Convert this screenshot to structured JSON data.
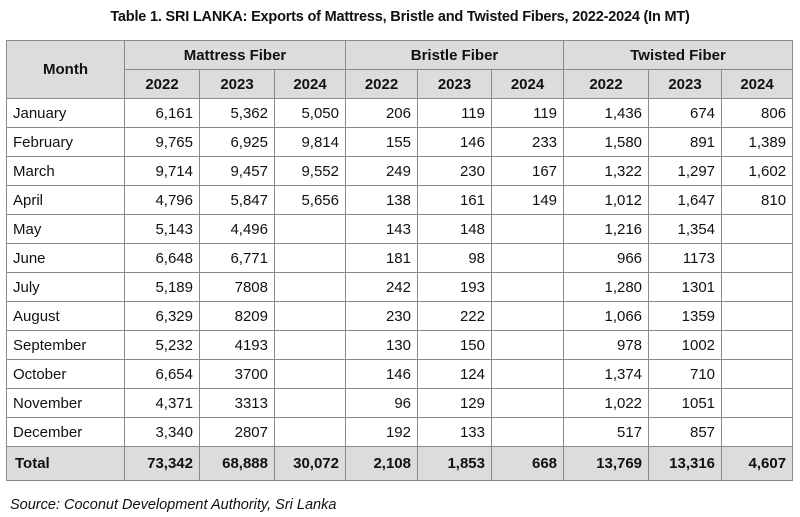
{
  "title": "Table 1. SRI LANKA: Exports of Mattress, Bristle and Twisted Fibers, 2022-2024 (In MT)",
  "month_header": "Month",
  "groups": [
    "Mattress Fiber",
    "Bristle Fiber",
    "Twisted Fiber"
  ],
  "years": [
    "2022",
    "2023",
    "2024"
  ],
  "rows": [
    {
      "month": "January",
      "values": [
        "6,161",
        "5,362",
        "5,050",
        "206",
        "119",
        "119",
        "1,436",
        "674",
        "806"
      ]
    },
    {
      "month": "February",
      "values": [
        "9,765",
        "6,925",
        "9,814",
        "155",
        "146",
        "233",
        "1,580",
        "891",
        "1,389"
      ]
    },
    {
      "month": "March",
      "values": [
        "9,714",
        "9,457",
        "9,552",
        "249",
        "230",
        "167",
        "1,322",
        "1,297",
        "1,602"
      ]
    },
    {
      "month": "April",
      "values": [
        "4,796",
        "5,847",
        "5,656",
        "138",
        "161",
        "149",
        "1,012",
        "1,647",
        "810"
      ]
    },
    {
      "month": "May",
      "values": [
        "5,143",
        "4,496",
        "",
        "143",
        "148",
        "",
        "1,216",
        "1,354",
        ""
      ]
    },
    {
      "month": "June",
      "values": [
        "6,648",
        "6,771",
        "",
        "181",
        "98",
        "",
        "966",
        "1173",
        ""
      ]
    },
    {
      "month": "July",
      "values": [
        "5,189",
        "7808",
        "",
        "242",
        "193",
        "",
        "1,280",
        "1301",
        ""
      ]
    },
    {
      "month": "August",
      "values": [
        "6,329",
        "8209",
        "",
        "230",
        "222",
        "",
        "1,066",
        "1359",
        ""
      ]
    },
    {
      "month": "September",
      "values": [
        "5,232",
        "4193",
        "",
        "130",
        "150",
        "",
        "978",
        "1002",
        ""
      ]
    },
    {
      "month": "October",
      "values": [
        "6,654",
        "3700",
        "",
        "146",
        "124",
        "",
        "1,374",
        "710",
        ""
      ]
    },
    {
      "month": "November",
      "values": [
        "4,371",
        "3313",
        "",
        "96",
        "129",
        "",
        "1,022",
        "1051",
        ""
      ]
    },
    {
      "month": "December",
      "values": [
        "3,340",
        "2807",
        "",
        "192",
        "133",
        "",
        "517",
        "857",
        ""
      ]
    }
  ],
  "total": {
    "label": "Total",
    "values": [
      "73,342",
      "68,888",
      "30,072",
      "2,108",
      "1,853",
      "668",
      "13,769",
      "13,316",
      "4,607"
    ]
  },
  "source": "Source: Coconut Development Authority, Sri Lanka"
}
